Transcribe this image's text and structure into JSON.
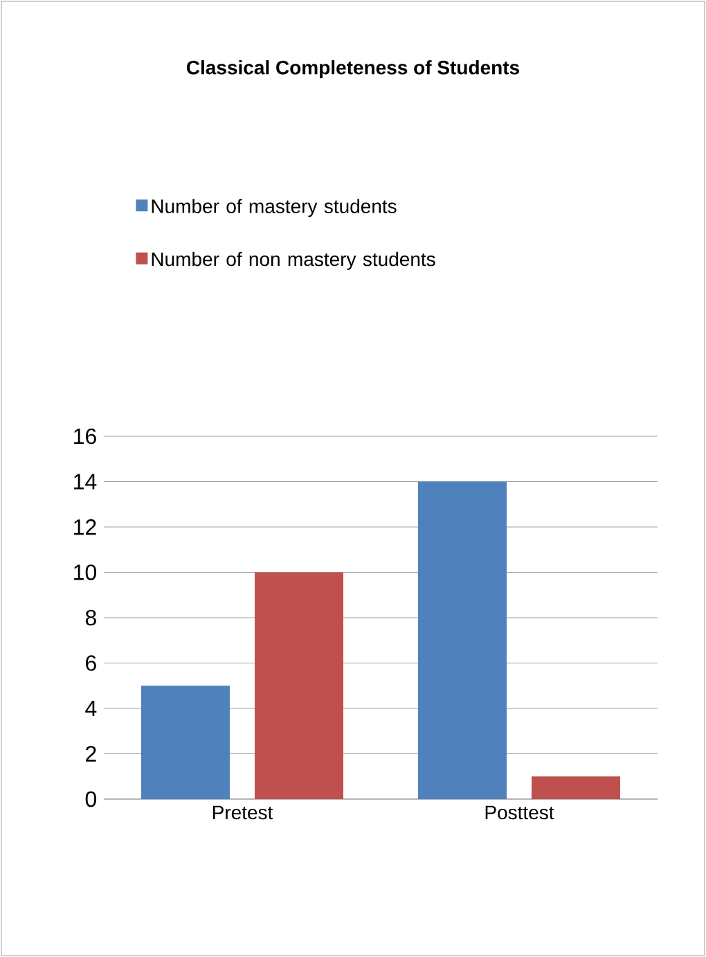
{
  "chart_data": {
    "type": "bar",
    "title": "Classical Completeness of Students",
    "categories": [
      "Pretest",
      "Posttest"
    ],
    "series": [
      {
        "name": "Number of mastery students",
        "color": "#4f81bd",
        "values": [
          5,
          14
        ]
      },
      {
        "name": "Number of non mastery students",
        "color": "#c0504d",
        "values": [
          10,
          1
        ]
      }
    ],
    "ylim": [
      0,
      16
    ],
    "yticks": [
      0,
      2,
      4,
      6,
      8,
      10,
      12,
      14,
      16
    ],
    "grid": "y",
    "legend": "top"
  }
}
